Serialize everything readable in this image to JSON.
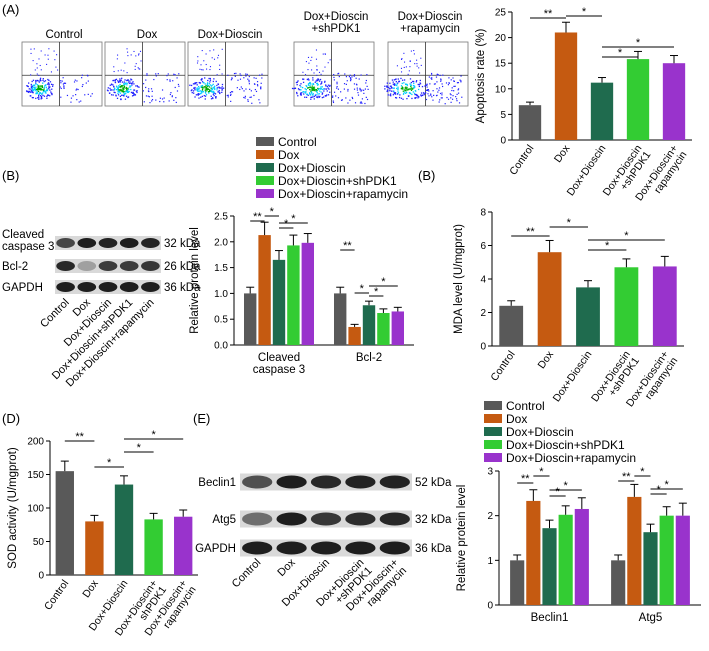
{
  "colors": {
    "Control": "#595959",
    "Dox": "#c55a11",
    "Dox+Dioscin": "#1f6b4e",
    "Dox+Dioscin+shPDK1": "#33cc33",
    "Dox+Dioscin+rapamycin": "#9933cc",
    "flow_high": "#00aa00",
    "flow_mid": "#00ccff",
    "flow_low": "#2222ff"
  },
  "panels": {
    "A": "(A)",
    "B1": "(B)",
    "B2": "(B)",
    "D": "(D)",
    "E": "(E)"
  },
  "flow": {
    "titles": [
      "Control",
      "Dox",
      "Dox+Dioscin",
      "Dox+Dioscin\n+shPDK1",
      "Dox+Dioscin\n+rapamycin"
    ]
  },
  "blots": {
    "B": {
      "rows": [
        "Cleaved\ncaspase 3",
        "Bcl-2",
        "GAPDH"
      ],
      "sizes": [
        "32 kDa",
        "26 kDa",
        "36 kDa"
      ],
      "lanes": [
        "Control",
        "Dox",
        "Dox+Dioscin",
        "Dox+Dioscin+shPDK1",
        "Dox+Dioscin+rapamycin"
      ]
    },
    "E": {
      "rows": [
        "Beclin1",
        "Atg5",
        "GAPDH"
      ],
      "sizes": [
        "52 kDa",
        "32 kDa",
        "36 kDa"
      ],
      "lanes": [
        "Control",
        "Dox",
        "Dox+Dioscin",
        "Dox+Dioscin\n+shPDK1",
        "Dox+Dioscin+\nrapamycin"
      ]
    }
  },
  "legend": {
    "entries": [
      "Control",
      "Dox",
      "Dox+Dioscin",
      "Dox+Dioscin+shPDK1",
      "Dox+Dioscin+rapamycin"
    ]
  },
  "chart_data": [
    {
      "id": "A",
      "type": "bar",
      "categories": [
        "Control",
        "Dox",
        "Dox+Dioscin",
        "Dox+Dioscin\n+shPDK1",
        "Dox+Dioscin+\nrapamycin"
      ],
      "values": [
        6.8,
        21.0,
        11.2,
        15.8,
        15.0
      ],
      "errors": [
        0.6,
        2.0,
        1.0,
        1.5,
        1.5
      ],
      "ylabel": "Apoptosis rate (%)",
      "ylim": [
        0,
        25
      ],
      "yticks": [
        0,
        5,
        10,
        15,
        20,
        25
      ],
      "significance": [
        {
          "from": 0,
          "to": 1,
          "label": "**"
        },
        {
          "from": 1,
          "to": 2,
          "label": "*"
        },
        {
          "from": 2,
          "to": 3,
          "label": "*"
        },
        {
          "from": 2,
          "to": 4,
          "label": "*"
        }
      ]
    },
    {
      "id": "B_protein",
      "type": "bar",
      "groups": [
        "Cleaved\ncaspase 3",
        "Bcl-2"
      ],
      "series": [
        {
          "name": "Control",
          "values": [
            1.0,
            1.0
          ],
          "errors": [
            0.12,
            0.12
          ]
        },
        {
          "name": "Dox",
          "values": [
            2.13,
            0.35
          ],
          "errors": [
            0.25,
            0.05
          ]
        },
        {
          "name": "Dox+Dioscin",
          "values": [
            1.65,
            0.77
          ],
          "errors": [
            0.18,
            0.08
          ]
        },
        {
          "name": "Dox+Dioscin+shPDK1",
          "values": [
            1.93,
            0.62
          ],
          "errors": [
            0.2,
            0.08
          ]
        },
        {
          "name": "Dox+Dioscin+rapamycin",
          "values": [
            1.98,
            0.65
          ],
          "errors": [
            0.18,
            0.08
          ]
        }
      ],
      "ylabel": "Relative protein level",
      "ylim": [
        0,
        2.5
      ],
      "yticks": [
        0,
        0.5,
        1.0,
        1.5,
        2.0,
        2.5
      ],
      "significance": [
        {
          "group": 0,
          "from": 0,
          "to": 1,
          "label": "**"
        },
        {
          "group": 0,
          "from": 1,
          "to": 2,
          "label": "*"
        },
        {
          "group": 0,
          "from": 2,
          "to": 3,
          "label": "*"
        },
        {
          "group": 0,
          "from": 2,
          "to": 4,
          "label": "*"
        },
        {
          "group": 1,
          "from": 0,
          "to": 1,
          "label": "**"
        },
        {
          "group": 1,
          "from": 1,
          "to": 2,
          "label": "*"
        },
        {
          "group": 1,
          "from": 2,
          "to": 3,
          "label": "*"
        },
        {
          "group": 1,
          "from": 2,
          "to": 4,
          "label": "*"
        }
      ]
    },
    {
      "id": "B_mda",
      "type": "bar",
      "categories": [
        "Control",
        "Dox",
        "Dox+Dioscin",
        "Dox+Dioscin\n+shPDK1",
        "Dox+Dioscin+\nrapamycin"
      ],
      "values": [
        2.4,
        5.6,
        3.5,
        4.7,
        4.75
      ],
      "errors": [
        0.3,
        0.7,
        0.4,
        0.5,
        0.6
      ],
      "ylabel": "MDA level (U/mgprot)",
      "ylim": [
        0,
        8
      ],
      "yticks": [
        0,
        2,
        4,
        6,
        8
      ],
      "significance": [
        {
          "from": 0,
          "to": 1,
          "label": "**"
        },
        {
          "from": 1,
          "to": 2,
          "label": "*"
        },
        {
          "from": 2,
          "to": 3,
          "label": "*"
        },
        {
          "from": 2,
          "to": 4,
          "label": "*"
        }
      ]
    },
    {
      "id": "D",
      "type": "bar",
      "categories": [
        "Control",
        "Dox",
        "Dox+Dioscin",
        "Dox+Dioscin+\nshPDK1",
        "Dox+Dioscin+\nrapamycin"
      ],
      "values": [
        155,
        80,
        135,
        83,
        87
      ],
      "errors": [
        15,
        9,
        13,
        9,
        10
      ],
      "ylabel": "SOD activity (U/mgprot)",
      "ylim": [
        0,
        200
      ],
      "yticks": [
        0,
        50,
        100,
        150,
        200
      ],
      "significance": [
        {
          "from": 0,
          "to": 1,
          "label": "**"
        },
        {
          "from": 1,
          "to": 2,
          "label": "*"
        },
        {
          "from": 2,
          "to": 3,
          "label": "*"
        },
        {
          "from": 2,
          "to": 4,
          "label": "*"
        }
      ]
    },
    {
      "id": "E_protein",
      "type": "bar",
      "groups": [
        "Beclin1",
        "Atg5"
      ],
      "series": [
        {
          "name": "Control",
          "values": [
            1.0,
            1.0
          ],
          "errors": [
            0.12,
            0.12
          ]
        },
        {
          "name": "Dox",
          "values": [
            2.33,
            2.42
          ],
          "errors": [
            0.25,
            0.28
          ]
        },
        {
          "name": "Dox+Dioscin",
          "values": [
            1.72,
            1.63
          ],
          "errors": [
            0.18,
            0.18
          ]
        },
        {
          "name": "Dox+Dioscin+shPDK1",
          "values": [
            2.02,
            2.0
          ],
          "errors": [
            0.2,
            0.2
          ]
        },
        {
          "name": "Dox+Dioscin+rapamycin",
          "values": [
            2.15,
            2.0
          ],
          "errors": [
            0.25,
            0.28
          ]
        }
      ],
      "ylabel": "Relative protein level",
      "ylim": [
        0,
        3
      ],
      "yticks": [
        0,
        1,
        2,
        3
      ],
      "significance": [
        {
          "group": 0,
          "from": 0,
          "to": 1,
          "label": "**"
        },
        {
          "group": 0,
          "from": 1,
          "to": 2,
          "label": "*"
        },
        {
          "group": 0,
          "from": 2,
          "to": 3,
          "label": "*"
        },
        {
          "group": 0,
          "from": 2,
          "to": 4,
          "label": "*"
        },
        {
          "group": 1,
          "from": 0,
          "to": 1,
          "label": "**"
        },
        {
          "group": 1,
          "from": 1,
          "to": 2,
          "label": "*"
        },
        {
          "group": 1,
          "from": 2,
          "to": 3,
          "label": "*"
        },
        {
          "group": 1,
          "from": 2,
          "to": 4,
          "label": "*"
        }
      ]
    }
  ]
}
